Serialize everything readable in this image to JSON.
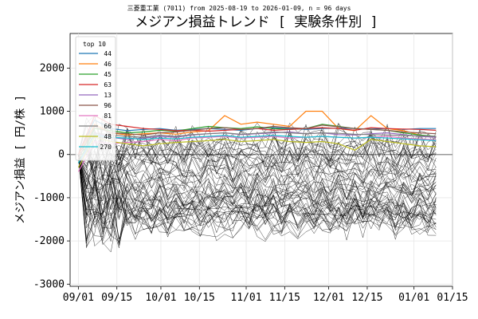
{
  "header": {
    "suptitle": "三菱重工業 (7011) from 2025-08-19 to 2026-01-09, n = 96 days",
    "title": "メジアン損益トレンド [ 実験条件別 ]"
  },
  "chart_data": {
    "type": "line",
    "ylabel": "メジアン損益 [ 円/株 ]",
    "xlabel": "",
    "x_ticks": [
      "09/01",
      "09/15",
      "10/01",
      "10/15",
      "11/01",
      "11/15",
      "12/01",
      "12/15",
      "01/01",
      "01/15"
    ],
    "y_ticks": [
      2000,
      1000,
      0,
      -1000,
      -2000,
      -3000
    ],
    "ylim": [
      -3050,
      2800
    ],
    "xlim": [
      "2025-08-29",
      "2026-01-15"
    ],
    "x_start": "2025-09-01",
    "x_end": "2026-01-09",
    "grid": true,
    "zero_line": true,
    "legend": {
      "title": "top 10",
      "placement": "top-left",
      "entries": [
        "44",
        "46",
        "45",
        "63",
        "13",
        "96",
        "81",
        "66",
        "48",
        "270"
      ]
    },
    "series": [
      {
        "name": "44",
        "color": "#1f77b4",
        "values": [
          0,
          800,
          600,
          550,
          580,
          600,
          560,
          580,
          600,
          580,
          560,
          600,
          620,
          600,
          580,
          600,
          610,
          600,
          590,
          600,
          580,
          600,
          600
        ]
      },
      {
        "name": "46",
        "color": "#ff7f0e",
        "values": [
          0,
          700,
          500,
          450,
          480,
          500,
          470,
          520,
          550,
          900,
          700,
          750,
          700,
          650,
          1000,
          1000,
          600,
          550,
          900,
          600,
          550,
          450,
          400
        ]
      },
      {
        "name": "45",
        "color": "#2ca02c",
        "values": [
          -200,
          600,
          550,
          500,
          520,
          560,
          540,
          600,
          650,
          620,
          600,
          640,
          600,
          580,
          600,
          700,
          650,
          600,
          580,
          560,
          500,
          450,
          420
        ]
      },
      {
        "name": "63",
        "color": "#d62728",
        "values": [
          0,
          900,
          700,
          650,
          600,
          580,
          550,
          560,
          540,
          560,
          580,
          600,
          560,
          580,
          600,
          620,
          600,
          560,
          620,
          600,
          590,
          580,
          560
        ]
      },
      {
        "name": "13",
        "color": "#9467bd",
        "values": [
          -300,
          500,
          400,
          350,
          380,
          420,
          400,
          450,
          480,
          500,
          460,
          480,
          500,
          520,
          480,
          500,
          460,
          450,
          480,
          500,
          460,
          420,
          400
        ]
      },
      {
        "name": "96",
        "color": "#8c564b",
        "values": [
          -100,
          650,
          500,
          480,
          450,
          500,
          520,
          560,
          600,
          620,
          580,
          600,
          650,
          620,
          600,
          680,
          640,
          600,
          580,
          560,
          520,
          500,
          480
        ]
      },
      {
        "name": "81",
        "color": "#e377c2",
        "values": [
          -400,
          300,
          250,
          280,
          300,
          350,
          320,
          380,
          400,
          420,
          380,
          400,
          420,
          380,
          400,
          420,
          400,
          380,
          400,
          420,
          380,
          360,
          340
        ]
      },
      {
        "name": "66",
        "color": "#7f7f7f",
        "values": [
          -200,
          500,
          450,
          420,
          400,
          450,
          420,
          460,
          480,
          500,
          470,
          490,
          520,
          500,
          480,
          500,
          490,
          470,
          460,
          450,
          440,
          430,
          420
        ]
      },
      {
        "name": "48",
        "color": "#bcbd22",
        "values": [
          -300,
          400,
          300,
          250,
          200,
          250,
          280,
          300,
          320,
          350,
          300,
          320,
          350,
          300,
          280,
          300,
          250,
          100,
          350,
          300,
          250,
          200,
          180
        ]
      },
      {
        "name": "270",
        "color": "#17becf",
        "values": [
          -200,
          450,
          400,
          380,
          350,
          380,
          360,
          400,
          420,
          440,
          400,
          420,
          440,
          420,
          400,
          420,
          400,
          380,
          400,
          380,
          360,
          340,
          320
        ]
      }
    ],
    "background_lines": {
      "count": 60,
      "color": "#000000",
      "value_range": [
        -2800,
        900
      ],
      "style": "thin"
    }
  }
}
